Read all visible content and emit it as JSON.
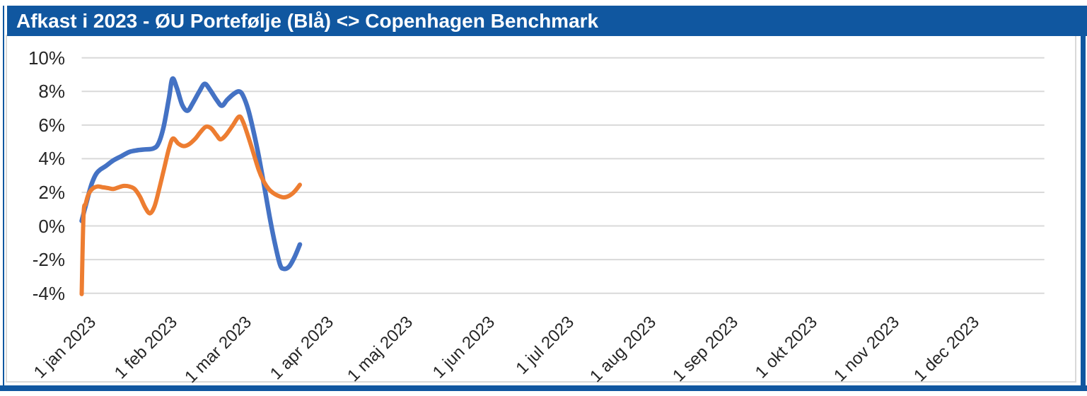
{
  "window": {
    "title": "Afkast i 2023 - ØU Portefølje (Blå) <> Copenhagen Benchmark"
  },
  "colors": {
    "title_bar_blue": "#1057A0",
    "frame_blue": "#1057A0",
    "inner_border_gray": "#D9D9D9",
    "gridline_gray": "#D9D9D9",
    "axis_text": "#262626",
    "portfolio_blue": "#4472C4",
    "benchmark_orange": "#ED7D31",
    "background": "#FFFFFF"
  },
  "chart_data": {
    "type": "line",
    "title": "Afkast i 2023 - ØU Portefølje (Blå) <> Copenhagen Benchmark",
    "grid": true,
    "legend_position": "none",
    "y_axis": {
      "unit": "%",
      "min": -4,
      "max": 10,
      "tick_step": 2,
      "ticks": [
        {
          "label": "10%",
          "value": 10
        },
        {
          "label": "8%",
          "value": 8
        },
        {
          "label": "6%",
          "value": 6
        },
        {
          "label": "4%",
          "value": 4
        },
        {
          "label": "2%",
          "value": 2
        },
        {
          "label": "0%",
          "value": 0
        },
        {
          "label": "-2%",
          "value": -2
        },
        {
          "label": "-4%",
          "value": -4
        }
      ]
    },
    "x_axis": {
      "range_days": [
        0,
        364
      ],
      "ticks": [
        {
          "label": "1 jan 2023",
          "day": 0
        },
        {
          "label": "1 feb 2023",
          "day": 31
        },
        {
          "label": "1 mar 2023",
          "day": 59
        },
        {
          "label": "1 apr 2023",
          "day": 90
        },
        {
          "label": "1 maj 2023",
          "day": 120
        },
        {
          "label": "1 jun 2023",
          "day": 151
        },
        {
          "label": "1 jul 2023",
          "day": 181
        },
        {
          "label": "1 aug 2023",
          "day": 212
        },
        {
          "label": "1 sep 2023",
          "day": 243
        },
        {
          "label": "1 okt 2023",
          "day": 273
        },
        {
          "label": "1 nov 2023",
          "day": 304
        },
        {
          "label": "1 dec 2023",
          "day": 334
        }
      ]
    },
    "series": [
      {
        "name": "ØU Portefølje (Blå)",
        "color": "#4472C4",
        "points": [
          [
            0,
            0.3
          ],
          [
            1,
            0.9
          ],
          [
            2,
            1.5
          ],
          [
            3,
            2.1
          ],
          [
            4,
            2.6
          ],
          [
            5.5,
            3.1
          ],
          [
            7,
            3.35
          ],
          [
            9,
            3.55
          ],
          [
            12,
            3.9
          ],
          [
            15,
            4.15
          ],
          [
            18,
            4.4
          ],
          [
            21,
            4.5
          ],
          [
            24,
            4.55
          ],
          [
            27,
            4.6
          ],
          [
            29,
            4.9
          ],
          [
            31,
            5.9
          ],
          [
            33,
            7.6
          ],
          [
            34.3,
            8.75
          ],
          [
            36,
            8.2
          ],
          [
            38,
            7.2
          ],
          [
            40,
            6.85
          ],
          [
            42,
            7.3
          ],
          [
            44.5,
            8.0
          ],
          [
            46.5,
            8.45
          ],
          [
            48.5,
            8.1
          ],
          [
            51,
            7.5
          ],
          [
            53,
            7.15
          ],
          [
            55,
            7.5
          ],
          [
            57.5,
            7.85
          ],
          [
            59.5,
            8.0
          ],
          [
            61,
            7.75
          ],
          [
            63,
            6.9
          ],
          [
            65,
            5.6
          ],
          [
            67,
            4.1
          ],
          [
            69,
            2.4
          ],
          [
            71,
            0.6
          ],
          [
            73,
            -1.0
          ],
          [
            75,
            -2.3
          ],
          [
            76.5,
            -2.55
          ],
          [
            78.5,
            -2.4
          ],
          [
            80.5,
            -1.85
          ],
          [
            82.5,
            -1.1
          ]
        ]
      },
      {
        "name": "Copenhagen Benchmark",
        "color": "#ED7D31",
        "points": [
          [
            0,
            -4.05
          ],
          [
            0.7,
            0.65
          ],
          [
            1.5,
            1.3
          ],
          [
            2.5,
            1.85
          ],
          [
            4,
            2.2
          ],
          [
            6,
            2.35
          ],
          [
            8,
            2.3
          ],
          [
            10,
            2.25
          ],
          [
            12,
            2.2
          ],
          [
            14,
            2.3
          ],
          [
            16,
            2.38
          ],
          [
            18,
            2.35
          ],
          [
            20,
            2.2
          ],
          [
            22,
            1.75
          ],
          [
            24,
            1.1
          ],
          [
            25.8,
            0.75
          ],
          [
            27.5,
            1.15
          ],
          [
            29,
            2.0
          ],
          [
            31,
            3.3
          ],
          [
            33,
            4.6
          ],
          [
            34.5,
            5.2
          ],
          [
            36.5,
            4.9
          ],
          [
            38.5,
            4.75
          ],
          [
            40.5,
            4.85
          ],
          [
            43,
            5.2
          ],
          [
            45,
            5.6
          ],
          [
            47,
            5.9
          ],
          [
            49,
            5.8
          ],
          [
            51,
            5.4
          ],
          [
            52.5,
            5.15
          ],
          [
            54.5,
            5.4
          ],
          [
            57,
            5.95
          ],
          [
            59.5,
            6.5
          ],
          [
            61,
            6.2
          ],
          [
            63,
            5.3
          ],
          [
            65,
            4.3
          ],
          [
            67,
            3.3
          ],
          [
            69,
            2.6
          ],
          [
            71,
            2.15
          ],
          [
            73,
            1.9
          ],
          [
            75,
            1.75
          ],
          [
            76.5,
            1.7
          ],
          [
            78.5,
            1.8
          ],
          [
            80.5,
            2.05
          ],
          [
            82.5,
            2.45
          ]
        ]
      }
    ]
  }
}
